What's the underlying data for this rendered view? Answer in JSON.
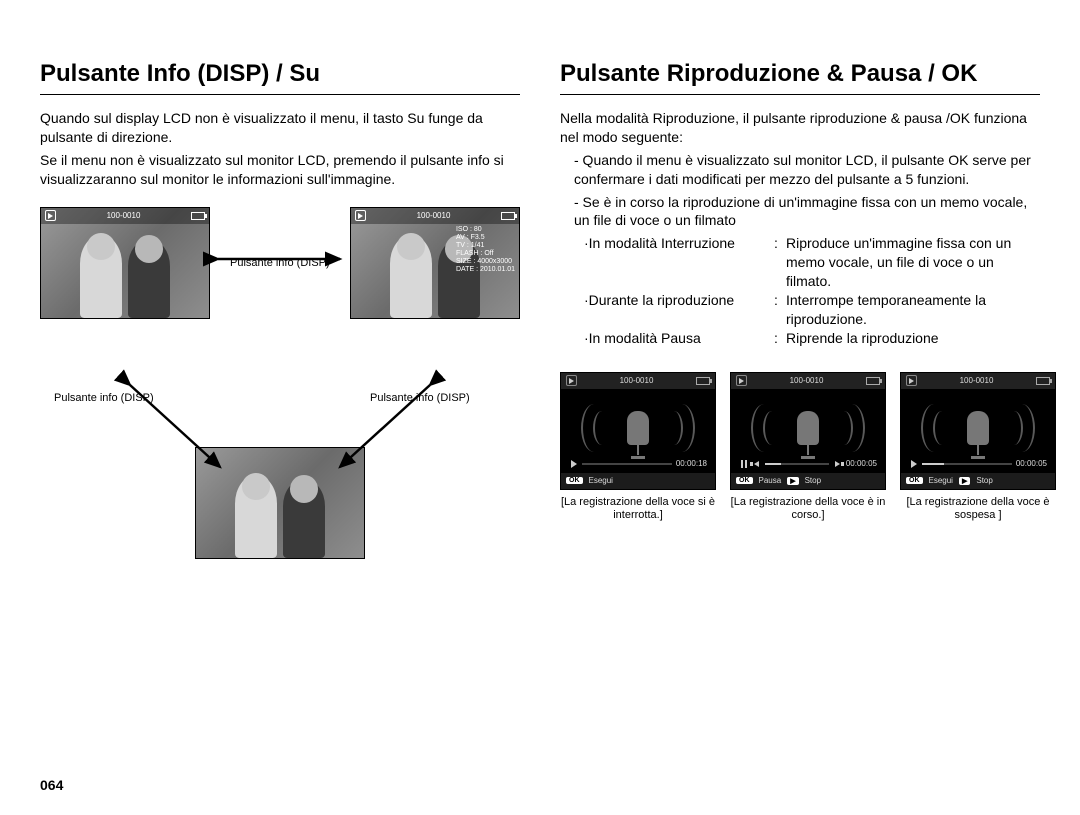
{
  "left": {
    "title": "Pulsante Info (DISP) / Su",
    "para1": "Quando sul display LCD non è visualizzato il menu, il tasto Su funge da pulsante di direzione.",
    "para2": "Se il menu non è visualizzato sul monitor LCD, premendo il pulsante info si visualizzaranno sul monitor le informazioni sull'immagine.",
    "label_center": "Pulsante info (DISP)",
    "label_bl": "Pulsante info (DISP)",
    "label_br": "Pulsante info (DISP)",
    "thumb_folder": "100-0010",
    "thumb_info": "ISO : 80\nAV : F3.5\nTV : 1/41\nFLASH : Off\nSIZE : 4000x3000\nDATE : 2010.01.01"
  },
  "right": {
    "title": "Pulsante Riproduzione & Pausa / OK",
    "para1": "Nella modalità Riproduzione, il pulsante riproduzione & pausa /OK funziona nel modo seguente:",
    "d1": "- Quando il menu è visualizzato sul monitor LCD, il pulsante OK serve per confermare i dati modificati per mezzo del pulsante a 5 funzioni.",
    "d2": "- Se è in corso la riproduzione di un'immagine fissa con un memo vocale, un file di voce o un filmato",
    "row1_label": "·In modalità Interruzione",
    "row1_val": "Riproduce un'immagine fissa con un memo vocale, un file di voce o un filmato.",
    "row2_label": "·Durante la riproduzione",
    "row2_val": "Interrompe temporaneamente la riproduzione.",
    "row3_label": "·In modalità Pausa",
    "row3_val": "Riprende la riproduzione",
    "sep": ":",
    "voice": {
      "folder": "100-0010",
      "screens": [
        {
          "time": "00:00:18",
          "fill_pct": 0,
          "controls": [
            {
              "key": "OK",
              "label": "Esegui"
            }
          ],
          "play_head": "play",
          "caption": "[La registrazione della voce si è interrotta.]"
        },
        {
          "time": "00:00:05",
          "fill_pct": 25,
          "controls": [
            {
              "key": "OK",
              "label": "Pausa"
            },
            {
              "key": "▶",
              "label": "Stop"
            }
          ],
          "play_head": "pause",
          "caption": "[La registrazione della voce è in corso.]"
        },
        {
          "time": "00:00:05",
          "fill_pct": 25,
          "controls": [
            {
              "key": "OK",
              "label": "Esegui"
            },
            {
              "key": "▶",
              "label": "Stop"
            }
          ],
          "play_head": "play",
          "caption": "[La registrazione della voce è sospesa ]"
        }
      ]
    }
  },
  "page_number": "064"
}
